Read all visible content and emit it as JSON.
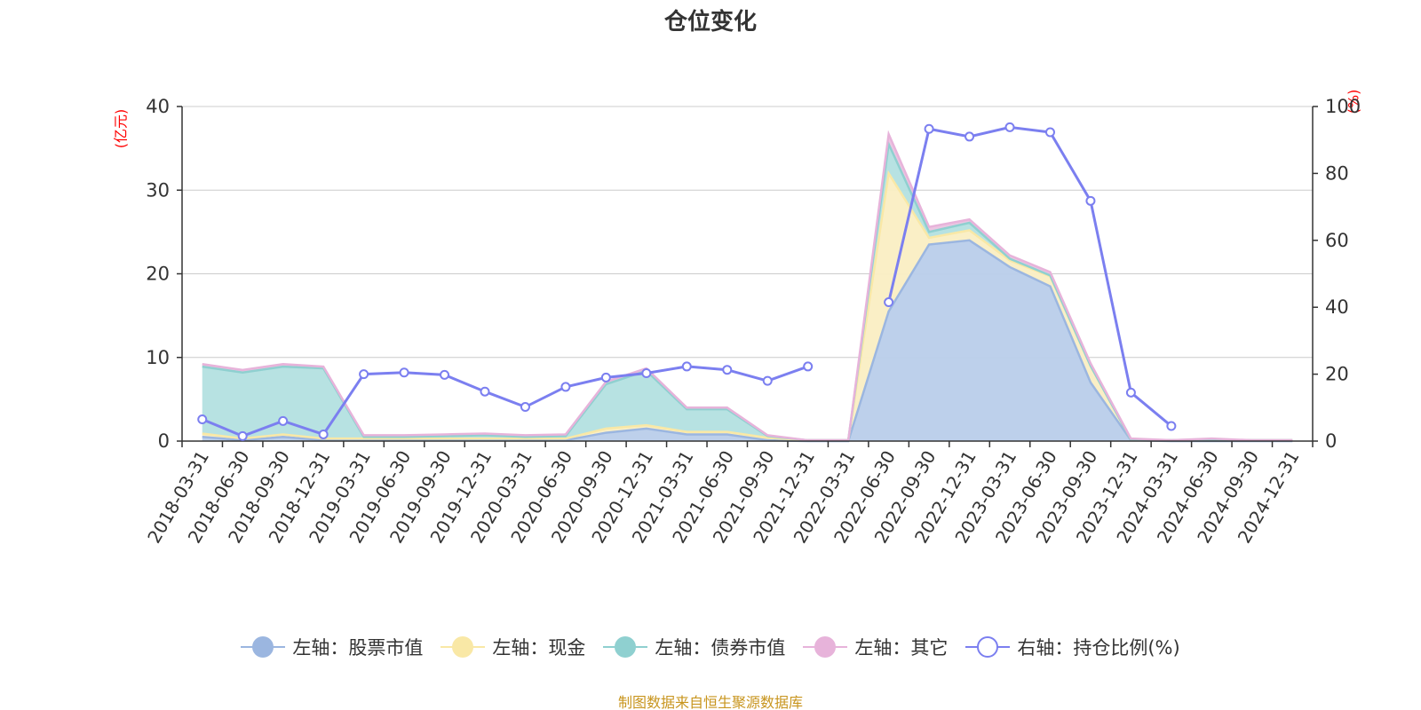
{
  "chart_data": {
    "type": "area",
    "title": "仓位变化",
    "left_axis_unit": "(亿元)",
    "right_axis_unit": "(%)",
    "ylim_left": [
      0,
      40
    ],
    "ylim_right": [
      0,
      100
    ],
    "yticks_left": [
      "0",
      "10",
      "20",
      "30",
      "40"
    ],
    "yticks_right": [
      "0",
      "20",
      "40",
      "60",
      "80",
      "100"
    ],
    "grid": true,
    "legend_position": "bottom",
    "categories": [
      "2018-03-31",
      "2018-06-30",
      "2018-09-30",
      "2018-12-31",
      "2019-03-31",
      "2019-06-30",
      "2019-09-30",
      "2019-12-31",
      "2020-03-31",
      "2020-06-30",
      "2020-09-30",
      "2020-12-31",
      "2021-03-31",
      "2021-06-30",
      "2021-09-30",
      "2021-12-31",
      "2022-03-31",
      "2022-06-30",
      "2022-09-30",
      "2022-12-31",
      "2023-03-31",
      "2023-06-30",
      "2023-09-30",
      "2023-12-31",
      "2024-03-31",
      "2024-06-30",
      "2024-09-30",
      "2024-12-31"
    ],
    "series": [
      {
        "name": "左轴：股票市值",
        "axis": "left",
        "color": "#9bb6e0",
        "fill": "#b9cdea",
        "values": [
          0.5,
          0.1,
          0.5,
          0.1,
          0.1,
          0.1,
          0.1,
          0.1,
          0.1,
          0.1,
          1.0,
          1.5,
          0.8,
          0.8,
          0.1,
          0,
          0,
          15.5,
          23.5,
          24.0,
          20.8,
          18.5,
          7.0,
          0.1,
          0,
          0,
          0,
          0
        ]
      },
      {
        "name": "左轴：现金",
        "axis": "left",
        "color": "#f9e8a6",
        "fill": "#faeec3",
        "values": [
          0.4,
          0.2,
          0.3,
          0.2,
          0.2,
          0.2,
          0.2,
          0.2,
          0.2,
          0.2,
          0.5,
          0.4,
          0.3,
          0.3,
          0.3,
          0.1,
          0.1,
          16.5,
          0.8,
          1.2,
          0.8,
          1.2,
          2.0,
          0.1,
          0.1,
          0.2,
          0.1,
          0.1
        ]
      },
      {
        "name": "左轴：债券市值",
        "axis": "left",
        "color": "#8fd0d0",
        "fill": "#b3e0e0",
        "values": [
          8.0,
          7.9,
          8.1,
          8.4,
          0.2,
          0.2,
          0.3,
          0.4,
          0.2,
          0.3,
          5.3,
          6.5,
          2.7,
          2.7,
          0.2,
          0,
          0,
          3.5,
          0.7,
          0.9,
          0.2,
          0.1,
          0,
          0,
          0,
          0,
          0,
          0
        ]
      },
      {
        "name": "左轴：其它",
        "axis": "left",
        "color": "#e7b3da",
        "fill": "#eac3e0",
        "values": [
          0.3,
          0.3,
          0.3,
          0.2,
          0.2,
          0.2,
          0.2,
          0.2,
          0.2,
          0.2,
          0.3,
          0.3,
          0.2,
          0.2,
          0.1,
          0,
          0,
          1.2,
          0.6,
          0.4,
          0.4,
          0.4,
          0.3,
          0.1,
          0,
          0.1,
          0,
          0
        ]
      },
      {
        "name": "右轴：持仓比例(%)",
        "axis": "right",
        "color": "#7b7ff0",
        "values": [
          6.5,
          1.5,
          6.0,
          2.0,
          20.0,
          20.5,
          19.8,
          14.8,
          10.2,
          16.2,
          19.0,
          20.3,
          22.3,
          21.3,
          18.0,
          22.3,
          null,
          41.5,
          93.3,
          91.0,
          93.8,
          92.3,
          71.8,
          14.5,
          4.5,
          null,
          null,
          null
        ]
      }
    ]
  },
  "source": "制图数据来自恒生聚源数据库"
}
